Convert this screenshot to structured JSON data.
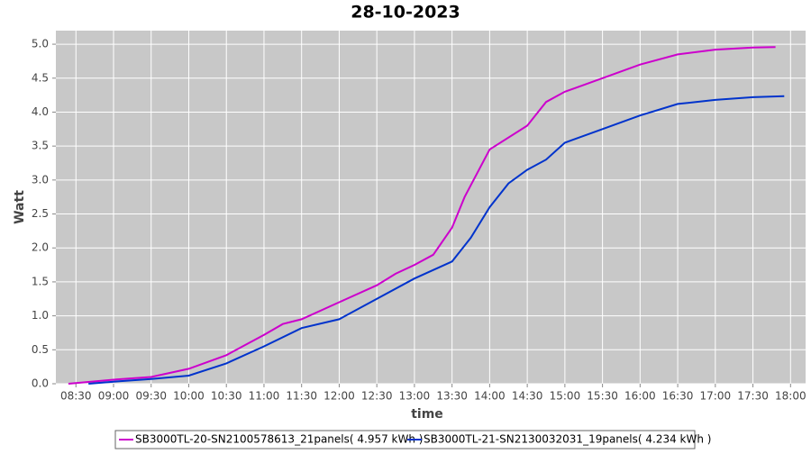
{
  "chart_data": {
    "type": "line",
    "title": "28-10-2023",
    "x_label": "time",
    "y_label": "Watt",
    "xlim": [
      "08:14",
      "18:12"
    ],
    "xticks": [
      "08:30",
      "09:00",
      "09:30",
      "10:00",
      "10:30",
      "11:00",
      "11:30",
      "12:00",
      "12:30",
      "13:00",
      "13:30",
      "14:00",
      "14:30",
      "15:00",
      "15:30",
      "16:00",
      "16:30",
      "17:00",
      "17:30",
      "18:00"
    ],
    "ylim": [
      0,
      5.2
    ],
    "yticks": [
      {
        "value": 0,
        "label": "0.0"
      },
      {
        "value": 0.5,
        "label": "0.5"
      },
      {
        "value": 1,
        "label": "1.0"
      },
      {
        "value": 1.5,
        "label": "1.5"
      },
      {
        "value": 2,
        "label": "2.0"
      },
      {
        "value": 2.5,
        "label": "2.5"
      },
      {
        "value": 3,
        "label": "3.0"
      },
      {
        "value": 3.5,
        "label": "3.5"
      },
      {
        "value": 4,
        "label": "4.0"
      },
      {
        "value": 4.5,
        "label": "4.5"
      },
      {
        "value": 5,
        "label": "5.0"
      }
    ],
    "grid": true,
    "series": [
      {
        "name": "SB3000TL-20-SN2100578613_21panels( 4.957 kWh )",
        "color": "#cc00cc",
        "x": [
          "08:24",
          "09:00",
          "09:30",
          "10:00",
          "10:30",
          "11:00",
          "11:15",
          "11:30",
          "12:00",
          "12:30",
          "12:45",
          "13:00",
          "13:15",
          "13:30",
          "13:40",
          "14:00",
          "14:30",
          "14:45",
          "15:00",
          "15:30",
          "16:00",
          "16:30",
          "17:00",
          "17:30",
          "17:48"
        ],
        "values": [
          0,
          0.06,
          0.1,
          0.22,
          0.42,
          0.72,
          0.88,
          0.95,
          1.2,
          1.45,
          1.62,
          1.75,
          1.9,
          2.3,
          2.75,
          3.45,
          3.8,
          4.15,
          4.3,
          4.5,
          4.7,
          4.85,
          4.92,
          4.95,
          4.957
        ]
      },
      {
        "name": "SB3000TL-21-SN2130032031_19panels( 4.234 kWh )",
        "color": "#0033cc",
        "x": [
          "08:40",
          "09:00",
          "09:30",
          "10:00",
          "10:30",
          "11:00",
          "11:30",
          "12:00",
          "12:30",
          "13:00",
          "13:30",
          "13:45",
          "14:00",
          "14:15",
          "14:30",
          "14:45",
          "15:00",
          "15:30",
          "16:00",
          "16:30",
          "17:00",
          "17:30",
          "17:55"
        ],
        "values": [
          0,
          0.03,
          0.07,
          0.12,
          0.3,
          0.55,
          0.82,
          0.95,
          1.25,
          1.55,
          1.8,
          2.15,
          2.6,
          2.95,
          3.15,
          3.3,
          3.55,
          3.75,
          3.95,
          4.12,
          4.18,
          4.22,
          4.234
        ]
      }
    ]
  }
}
